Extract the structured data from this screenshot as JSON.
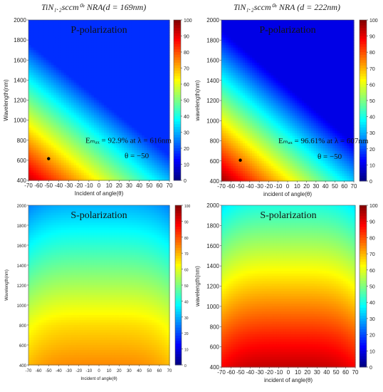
{
  "titles": {
    "left": "TiN₁.₂sccm⁰ᵛ NRA(d = 169nm)",
    "right": "TiN₁.₂sccm⁰ᵛ NRA (d = 222nm)"
  },
  "chart_data": [
    {
      "type": "heatmap",
      "panel": "top-left",
      "polarization_label": "P-polarization",
      "xlabel": "Incident of angle(θ)",
      "ylabel": "Wavelength(nm)",
      "x_ticks": [
        "-70",
        "-60",
        "-50",
        "-40",
        "-30",
        "-20",
        "-10",
        "0",
        "10",
        "20",
        "30",
        "40",
        "50",
        "60",
        "70"
      ],
      "y_ticks": [
        "400",
        "600",
        "800",
        "1000",
        "1200",
        "1400",
        "1600",
        "1800",
        "2000"
      ],
      "xlim": [
        -70,
        70
      ],
      "ylim": [
        400,
        2000
      ],
      "colorbar_ticks": [
        "0",
        "10",
        "20",
        "30",
        "40",
        "50",
        "60",
        "70",
        "80",
        "90",
        "100"
      ],
      "colorbar_range": [
        0,
        100
      ],
      "colormap": "jet",
      "annotation_line1": "Eₘₐₓ = 92.9% at λ = 616nm",
      "annotation_line2": "θ = −50",
      "max_point": {
        "x": -50,
        "y": 616,
        "value": 92.9
      }
    },
    {
      "type": "heatmap",
      "panel": "top-right",
      "polarization_label": "P-polarization",
      "xlabel": "incident of angle(θ)",
      "ylabel": "wavelength(nm)",
      "x_ticks": [
        "-70",
        "-60",
        "-50",
        "-40",
        "-30",
        "-20",
        "-10",
        "0",
        "10",
        "20",
        "30",
        "40",
        "50",
        "60",
        "70"
      ],
      "y_ticks": [
        "400",
        "600",
        "800",
        "1000",
        "1200",
        "1400",
        "1600",
        "1800",
        "2000"
      ],
      "xlim": [
        -70,
        70
      ],
      "ylim": [
        400,
        2000
      ],
      "colorbar_ticks": [
        "0",
        "10",
        "20",
        "30",
        "40",
        "50",
        "60",
        "70",
        "80",
        "90",
        "100"
      ],
      "colorbar_range": [
        0,
        100
      ],
      "colormap": "jet",
      "annotation_line1": "Eₘₐₓ = 96.61% at λ = 607nm",
      "annotation_line2": "θ = −50",
      "max_point": {
        "x": -50,
        "y": 607,
        "value": 96.61
      }
    },
    {
      "type": "heatmap",
      "panel": "bottom-left",
      "polarization_label": "S-polarization",
      "xlabel": "Incident of angle(θ)",
      "ylabel": "Wavelength(nm)",
      "x_ticks": [
        "-70",
        "-60",
        "-50",
        "-40",
        "-30",
        "-20",
        "-10",
        "0",
        "10",
        "20",
        "30",
        "40",
        "50",
        "60",
        "70"
      ],
      "y_ticks": [
        "400",
        "600",
        "800",
        "1000",
        "1200",
        "1400",
        "1600",
        "1800",
        "2000"
      ],
      "xlim": [
        -70,
        70
      ],
      "ylim": [
        400,
        2000
      ],
      "colorbar_ticks": [
        "0",
        "10",
        "20",
        "30",
        "40",
        "50",
        "60",
        "70",
        "80",
        "90",
        "100"
      ],
      "colorbar_range": [
        0,
        100
      ],
      "colormap": "jet"
    },
    {
      "type": "heatmap",
      "panel": "bottom-right",
      "polarization_label": "S-polarization",
      "xlabel": "incident of angle(θ)",
      "ylabel": "wavelength(nm)",
      "x_ticks": [
        "-70",
        "-60",
        "-50",
        "-40",
        "-30",
        "-20",
        "-10",
        "0",
        "10",
        "20",
        "30",
        "40",
        "50",
        "60",
        "70"
      ],
      "y_ticks": [
        "400",
        "600",
        "800",
        "1000",
        "1200",
        "1400",
        "1600",
        "1800",
        "2000"
      ],
      "xlim": [
        -70,
        70
      ],
      "ylim": [
        400,
        2000
      ],
      "colorbar_ticks": [
        "0",
        "10",
        "20",
        "30",
        "40",
        "50",
        "60",
        "70",
        "80",
        "90",
        "100"
      ],
      "colorbar_range": [
        0,
        100
      ],
      "colormap": "jet"
    }
  ]
}
